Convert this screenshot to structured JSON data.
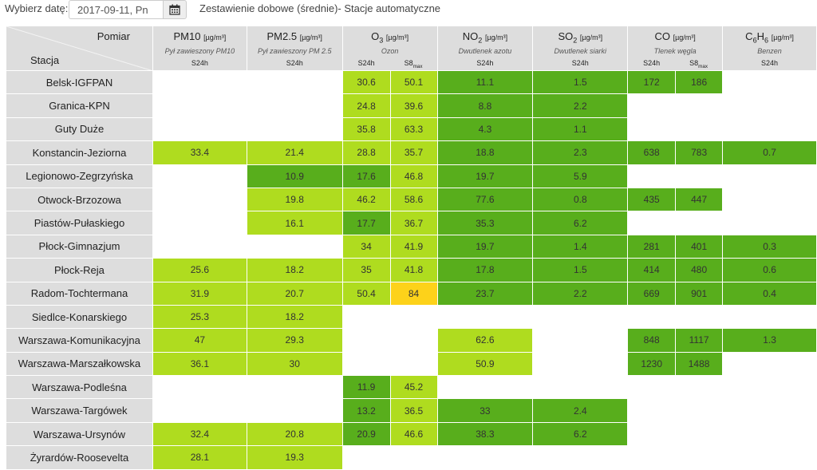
{
  "header": {
    "date_label": "Wybierz datę:",
    "date_value": "2017-09-11, Pn",
    "calendar_icon": "calendar-icon",
    "title": "Zestawienie dobowe (średnie)- Stacje automatyczne"
  },
  "colors": {
    "empty": "#ffffff",
    "very_good": "#58ae1c",
    "good": "#afdc1f",
    "moderate": "#fdd21a",
    "header_bg": "#dddddd"
  },
  "table": {
    "corner": {
      "pomiar": "Pomiar",
      "stacja": "Stacja"
    },
    "params": [
      {
        "name": "PM10",
        "sub": "",
        "unit": "[µg/m³]",
        "desc": "Pył zawieszony PM10",
        "cols": [
          "S24h"
        ]
      },
      {
        "name": "PM2.5",
        "sub": "",
        "unit": "[µg/m³]",
        "desc": "Pył zawieszony PM 2.5",
        "cols": [
          "S24h"
        ]
      },
      {
        "name": "O",
        "sub": "3",
        "unit": "[µg/m³]",
        "desc": "Ozon",
        "cols": [
          "S24h",
          "S8max"
        ]
      },
      {
        "name": "NO",
        "sub": "2",
        "unit": "[µg/m³]",
        "desc": "Dwutlenek azotu",
        "cols": [
          "S24h"
        ]
      },
      {
        "name": "SO",
        "sub": "2",
        "unit": "[µg/m³]",
        "desc": "Dwutlenek siarki",
        "cols": [
          "S24h"
        ]
      },
      {
        "name": "CO",
        "sub": "",
        "unit": "[µg/m³]",
        "desc": "Tlenek węgla",
        "cols": [
          "S24h",
          "S8max"
        ]
      },
      {
        "name": "C6H6",
        "sub": "",
        "unit": "[µg/m³]",
        "desc": "Benzen",
        "cols": [
          "S24h"
        ]
      }
    ],
    "rows": [
      {
        "station": "Belsk-IGFPAN",
        "cells": [
          {
            "v": "",
            "c": 0
          },
          {
            "v": "",
            "c": 0
          },
          {
            "v": "30.6",
            "c": 2
          },
          {
            "v": "50.1",
            "c": 2
          },
          {
            "v": "11.1",
            "c": 1
          },
          {
            "v": "1.5",
            "c": 1
          },
          {
            "v": "172",
            "c": 1
          },
          {
            "v": "186",
            "c": 1
          },
          {
            "v": "",
            "c": 0
          }
        ]
      },
      {
        "station": "Granica-KPN",
        "cells": [
          {
            "v": "",
            "c": 0
          },
          {
            "v": "",
            "c": 0
          },
          {
            "v": "24.8",
            "c": 2
          },
          {
            "v": "39.6",
            "c": 2
          },
          {
            "v": "8.8",
            "c": 1
          },
          {
            "v": "2.2",
            "c": 1
          },
          {
            "v": "",
            "c": 0
          },
          {
            "v": "",
            "c": 0
          },
          {
            "v": "",
            "c": 0
          }
        ]
      },
      {
        "station": "Guty Duże",
        "cells": [
          {
            "v": "",
            "c": 0
          },
          {
            "v": "",
            "c": 0
          },
          {
            "v": "35.8",
            "c": 2
          },
          {
            "v": "63.3",
            "c": 2
          },
          {
            "v": "4.3",
            "c": 1
          },
          {
            "v": "1.1",
            "c": 1
          },
          {
            "v": "",
            "c": 0
          },
          {
            "v": "",
            "c": 0
          },
          {
            "v": "",
            "c": 0
          }
        ]
      },
      {
        "station": "Konstancin-Jeziorna",
        "cells": [
          {
            "v": "33.4",
            "c": 2
          },
          {
            "v": "21.4",
            "c": 2
          },
          {
            "v": "28.8",
            "c": 2
          },
          {
            "v": "35.7",
            "c": 2
          },
          {
            "v": "18.8",
            "c": 1
          },
          {
            "v": "2.3",
            "c": 1
          },
          {
            "v": "638",
            "c": 1
          },
          {
            "v": "783",
            "c": 1
          },
          {
            "v": "0.7",
            "c": 1
          }
        ]
      },
      {
        "station": "Legionowo-Zegrzyńska",
        "cells": [
          {
            "v": "",
            "c": 0
          },
          {
            "v": "10.9",
            "c": 1
          },
          {
            "v": "17.6",
            "c": 1
          },
          {
            "v": "46.8",
            "c": 2
          },
          {
            "v": "19.7",
            "c": 1
          },
          {
            "v": "5.9",
            "c": 1
          },
          {
            "v": "",
            "c": 0
          },
          {
            "v": "",
            "c": 0
          },
          {
            "v": "",
            "c": 0
          }
        ]
      },
      {
        "station": "Otwock-Brzozowa",
        "cells": [
          {
            "v": "",
            "c": 0
          },
          {
            "v": "19.8",
            "c": 2
          },
          {
            "v": "46.2",
            "c": 2
          },
          {
            "v": "58.6",
            "c": 2
          },
          {
            "v": "77.6",
            "c": 1
          },
          {
            "v": "0.8",
            "c": 1
          },
          {
            "v": "435",
            "c": 1
          },
          {
            "v": "447",
            "c": 1
          },
          {
            "v": "",
            "c": 0
          }
        ]
      },
      {
        "station": "Piastów-Pułaskiego",
        "cells": [
          {
            "v": "",
            "c": 0
          },
          {
            "v": "16.1",
            "c": 2
          },
          {
            "v": "17.7",
            "c": 1
          },
          {
            "v": "36.7",
            "c": 2
          },
          {
            "v": "35.3",
            "c": 1
          },
          {
            "v": "6.2",
            "c": 1
          },
          {
            "v": "",
            "c": 0
          },
          {
            "v": "",
            "c": 0
          },
          {
            "v": "",
            "c": 0
          }
        ]
      },
      {
        "station": "Płock-Gimnazjum",
        "cells": [
          {
            "v": "",
            "c": 0
          },
          {
            "v": "",
            "c": 0
          },
          {
            "v": "34",
            "c": 2
          },
          {
            "v": "41.9",
            "c": 2
          },
          {
            "v": "19.7",
            "c": 1
          },
          {
            "v": "1.4",
            "c": 1
          },
          {
            "v": "281",
            "c": 1
          },
          {
            "v": "401",
            "c": 1
          },
          {
            "v": "0.3",
            "c": 1
          }
        ]
      },
      {
        "station": "Płock-Reja",
        "cells": [
          {
            "v": "25.6",
            "c": 2
          },
          {
            "v": "18.2",
            "c": 2
          },
          {
            "v": "35",
            "c": 2
          },
          {
            "v": "41.8",
            "c": 2
          },
          {
            "v": "17.8",
            "c": 1
          },
          {
            "v": "1.5",
            "c": 1
          },
          {
            "v": "414",
            "c": 1
          },
          {
            "v": "480",
            "c": 1
          },
          {
            "v": "0.6",
            "c": 1
          }
        ]
      },
      {
        "station": "Radom-Tochtermana",
        "cells": [
          {
            "v": "31.9",
            "c": 2
          },
          {
            "v": "20.7",
            "c": 2
          },
          {
            "v": "50.4",
            "c": 2
          },
          {
            "v": "84",
            "c": 3
          },
          {
            "v": "23.7",
            "c": 1
          },
          {
            "v": "2.2",
            "c": 1
          },
          {
            "v": "669",
            "c": 1
          },
          {
            "v": "901",
            "c": 1
          },
          {
            "v": "0.4",
            "c": 1
          }
        ]
      },
      {
        "station": "Siedlce-Konarskiego",
        "cells": [
          {
            "v": "25.3",
            "c": 2
          },
          {
            "v": "18.2",
            "c": 2
          },
          {
            "v": "",
            "c": 0
          },
          {
            "v": "",
            "c": 0
          },
          {
            "v": "",
            "c": 0
          },
          {
            "v": "",
            "c": 0
          },
          {
            "v": "",
            "c": 0
          },
          {
            "v": "",
            "c": 0
          },
          {
            "v": "",
            "c": 0
          }
        ]
      },
      {
        "station": "Warszawa-Komunikacyjna",
        "cells": [
          {
            "v": "47",
            "c": 2
          },
          {
            "v": "29.3",
            "c": 2
          },
          {
            "v": "",
            "c": 0
          },
          {
            "v": "",
            "c": 0
          },
          {
            "v": "62.6",
            "c": 2
          },
          {
            "v": "",
            "c": 0
          },
          {
            "v": "848",
            "c": 1
          },
          {
            "v": "1117",
            "c": 1
          },
          {
            "v": "1.3",
            "c": 1
          }
        ]
      },
      {
        "station": "Warszawa-Marszałkowska",
        "cells": [
          {
            "v": "36.1",
            "c": 2
          },
          {
            "v": "30",
            "c": 2
          },
          {
            "v": "",
            "c": 0
          },
          {
            "v": "",
            "c": 0
          },
          {
            "v": "50.9",
            "c": 2
          },
          {
            "v": "",
            "c": 0
          },
          {
            "v": "1230",
            "c": 1
          },
          {
            "v": "1488",
            "c": 1
          },
          {
            "v": "",
            "c": 0
          }
        ]
      },
      {
        "station": "Warszawa-Podleśna",
        "cells": [
          {
            "v": "",
            "c": 0
          },
          {
            "v": "",
            "c": 0
          },
          {
            "v": "11.9",
            "c": 1
          },
          {
            "v": "45.2",
            "c": 2
          },
          {
            "v": "",
            "c": 0
          },
          {
            "v": "",
            "c": 0
          },
          {
            "v": "",
            "c": 0
          },
          {
            "v": "",
            "c": 0
          },
          {
            "v": "",
            "c": 0
          }
        ]
      },
      {
        "station": "Warszawa-Targówek",
        "cells": [
          {
            "v": "",
            "c": 0
          },
          {
            "v": "",
            "c": 0
          },
          {
            "v": "13.2",
            "c": 1
          },
          {
            "v": "36.5",
            "c": 2
          },
          {
            "v": "33",
            "c": 1
          },
          {
            "v": "2.4",
            "c": 1
          },
          {
            "v": "",
            "c": 0
          },
          {
            "v": "",
            "c": 0
          },
          {
            "v": "",
            "c": 0
          }
        ]
      },
      {
        "station": "Warszawa-Ursynów",
        "cells": [
          {
            "v": "32.4",
            "c": 2
          },
          {
            "v": "20.8",
            "c": 2
          },
          {
            "v": "20.9",
            "c": 1
          },
          {
            "v": "46.6",
            "c": 2
          },
          {
            "v": "38.3",
            "c": 1
          },
          {
            "v": "6.2",
            "c": 1
          },
          {
            "v": "",
            "c": 0
          },
          {
            "v": "",
            "c": 0
          },
          {
            "v": "",
            "c": 0
          }
        ]
      },
      {
        "station": "Żyrardów-Roosevelta",
        "cells": [
          {
            "v": "28.1",
            "c": 2
          },
          {
            "v": "19.3",
            "c": 2
          },
          {
            "v": "",
            "c": 0
          },
          {
            "v": "",
            "c": 0
          },
          {
            "v": "",
            "c": 0
          },
          {
            "v": "",
            "c": 0
          },
          {
            "v": "",
            "c": 0
          },
          {
            "v": "",
            "c": 0
          },
          {
            "v": "",
            "c": 0
          }
        ]
      }
    ]
  }
}
